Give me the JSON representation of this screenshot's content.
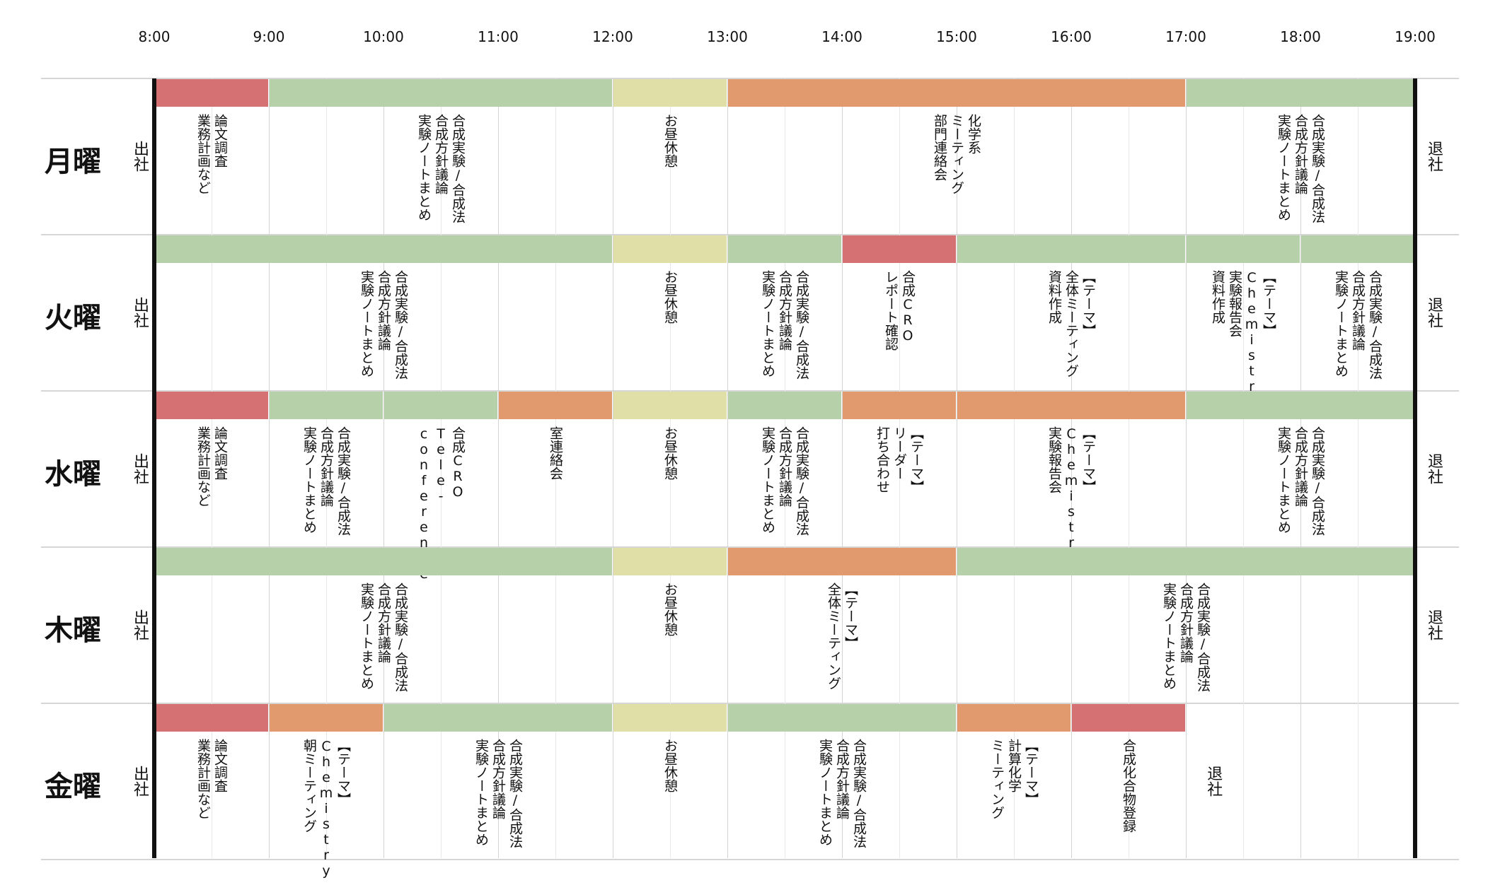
{
  "hours": [
    "8:00",
    "9:00",
    "10:00",
    "11:00",
    "12:00",
    "13:00",
    "14:00",
    "15:00",
    "16:00",
    "17:00",
    "18:00",
    "19:00"
  ],
  "start_hour": 8,
  "end_hour": 19,
  "colors": {
    "red": "#d57173",
    "green": "#b6d0aa",
    "yellow": "#e0dfa8",
    "orange": "#e09a6e",
    "grid": "#d4d4d4",
    "axis": "#111111"
  },
  "days": [
    {
      "label": "月曜",
      "arrive": "出社",
      "leave": "退社",
      "leave_at": 19,
      "blocks": [
        {
          "start": 8,
          "end": 9,
          "color": "red"
        },
        {
          "start": 9,
          "end": 12,
          "color": "green"
        },
        {
          "start": 12,
          "end": 13,
          "color": "yellow"
        },
        {
          "start": 13,
          "end": 17,
          "color": "orange"
        },
        {
          "start": 17,
          "end": 19,
          "color": "green"
        }
      ],
      "notes": [
        {
          "at": 8.5,
          "text": "論文調査\n業務計画など"
        },
        {
          "at": 10.5,
          "text": "合成実験/合成法\n合成方針議論\n実験ノートまとめ"
        },
        {
          "at": 12.5,
          "text": "お昼休憩"
        },
        {
          "at": 15,
          "text": "化学系\nミーティング\n部門連絡会"
        },
        {
          "at": 18,
          "text": "合成実験/合成法\n合成方針議論\n実験ノートまとめ"
        }
      ]
    },
    {
      "label": "火曜",
      "arrive": "出社",
      "leave": "退社",
      "leave_at": 19,
      "blocks": [
        {
          "start": 8,
          "end": 12,
          "color": "green"
        },
        {
          "start": 12,
          "end": 13,
          "color": "yellow"
        },
        {
          "start": 13,
          "end": 14,
          "color": "green"
        },
        {
          "start": 14,
          "end": 15,
          "color": "red"
        },
        {
          "start": 15,
          "end": 17,
          "color": "green"
        },
        {
          "start": 17,
          "end": 18,
          "color": "green"
        },
        {
          "start": 18,
          "end": 19,
          "color": "green"
        }
      ],
      "notes": [
        {
          "at": 10,
          "text": "合成実験/合成法\n合成方針議論\n実験ノートまとめ"
        },
        {
          "at": 12.5,
          "text": "お昼休憩"
        },
        {
          "at": 13.5,
          "text": "合成実験/合成法\n合成方針議論\n実験ノートまとめ"
        },
        {
          "at": 14.5,
          "text": "合成CRO\nレポート確認"
        },
        {
          "at": 16,
          "text": "【テーマ】\n全体ミーティング\n資料作成"
        },
        {
          "at": 17.5,
          "text": "【テーマ】\nChemistry\n実験報告会\n資料作成"
        },
        {
          "at": 18.5,
          "text": "合成実験/合成法\n合成方針議論\n実験ノートまとめ"
        }
      ]
    },
    {
      "label": "水曜",
      "arrive": "出社",
      "leave": "退社",
      "leave_at": 19,
      "blocks": [
        {
          "start": 8,
          "end": 9,
          "color": "red"
        },
        {
          "start": 9,
          "end": 10,
          "color": "green"
        },
        {
          "start": 10,
          "end": 11,
          "color": "green"
        },
        {
          "start": 11,
          "end": 12,
          "color": "orange"
        },
        {
          "start": 12,
          "end": 13,
          "color": "yellow"
        },
        {
          "start": 13,
          "end": 14,
          "color": "green"
        },
        {
          "start": 14,
          "end": 15,
          "color": "orange"
        },
        {
          "start": 15,
          "end": 17,
          "color": "orange"
        },
        {
          "start": 17,
          "end": 19,
          "color": "green"
        }
      ],
      "notes": [
        {
          "at": 8.5,
          "text": "論文調査\n業務計画など"
        },
        {
          "at": 9.5,
          "text": "合成実験/合成法\n合成方針議論\n実験ノートまとめ"
        },
        {
          "at": 10.5,
          "text": "合成CRO\nTele-\nconference"
        },
        {
          "at": 11.5,
          "text": "室連絡会"
        },
        {
          "at": 12.5,
          "text": "お昼休憩"
        },
        {
          "at": 13.5,
          "text": "合成実験/合成法\n合成方針議論\n実験ノートまとめ"
        },
        {
          "at": 14.5,
          "text": "【テーマ】\nリーダー\n打ち合わせ"
        },
        {
          "at": 16,
          "text": "【テーマ】\nChemistry\n実験報告会"
        },
        {
          "at": 18,
          "text": "合成実験/合成法\n合成方針議論\n実験ノートまとめ"
        }
      ]
    },
    {
      "label": "木曜",
      "arrive": "出社",
      "leave": "退社",
      "leave_at": 19,
      "blocks": [
        {
          "start": 8,
          "end": 12,
          "color": "green"
        },
        {
          "start": 12,
          "end": 13,
          "color": "yellow"
        },
        {
          "start": 13,
          "end": 15,
          "color": "orange"
        },
        {
          "start": 15,
          "end": 19,
          "color": "green"
        }
      ],
      "notes": [
        {
          "at": 10,
          "text": "合成実験/合成法\n合成方針議論\n実験ノートまとめ"
        },
        {
          "at": 12.5,
          "text": "お昼休憩"
        },
        {
          "at": 14,
          "text": "【テーマ】\n全体ミーティング"
        },
        {
          "at": 17,
          "text": "合成実験/合成法\n合成方針議論\n実験ノートまとめ"
        }
      ]
    },
    {
      "label": "金曜",
      "arrive": "出社",
      "leave": "退社",
      "leave_at": 17.15,
      "blocks": [
        {
          "start": 8,
          "end": 9,
          "color": "red"
        },
        {
          "start": 9,
          "end": 10,
          "color": "orange"
        },
        {
          "start": 10,
          "end": 12,
          "color": "green"
        },
        {
          "start": 12,
          "end": 13,
          "color": "yellow"
        },
        {
          "start": 13,
          "end": 15,
          "color": "green"
        },
        {
          "start": 15,
          "end": 16,
          "color": "orange"
        },
        {
          "start": 16,
          "end": 17,
          "color": "red"
        }
      ],
      "notes": [
        {
          "at": 8.5,
          "text": "論文調査\n業務計画など"
        },
        {
          "at": 9.5,
          "text": "【テーマ】\nChemistry\n朝ミーティング"
        },
        {
          "at": 11,
          "text": "合成実験/合成法\n合成方針議論\n実験ノートまとめ"
        },
        {
          "at": 12.5,
          "text": "お昼休憩"
        },
        {
          "at": 14,
          "text": "合成実験/合成法\n合成方針議論\n実験ノートまとめ"
        },
        {
          "at": 15.5,
          "text": "【テーマ】\n計算化学\nミーティング"
        },
        {
          "at": 16.5,
          "text": "合成化合物登録"
        }
      ]
    }
  ]
}
